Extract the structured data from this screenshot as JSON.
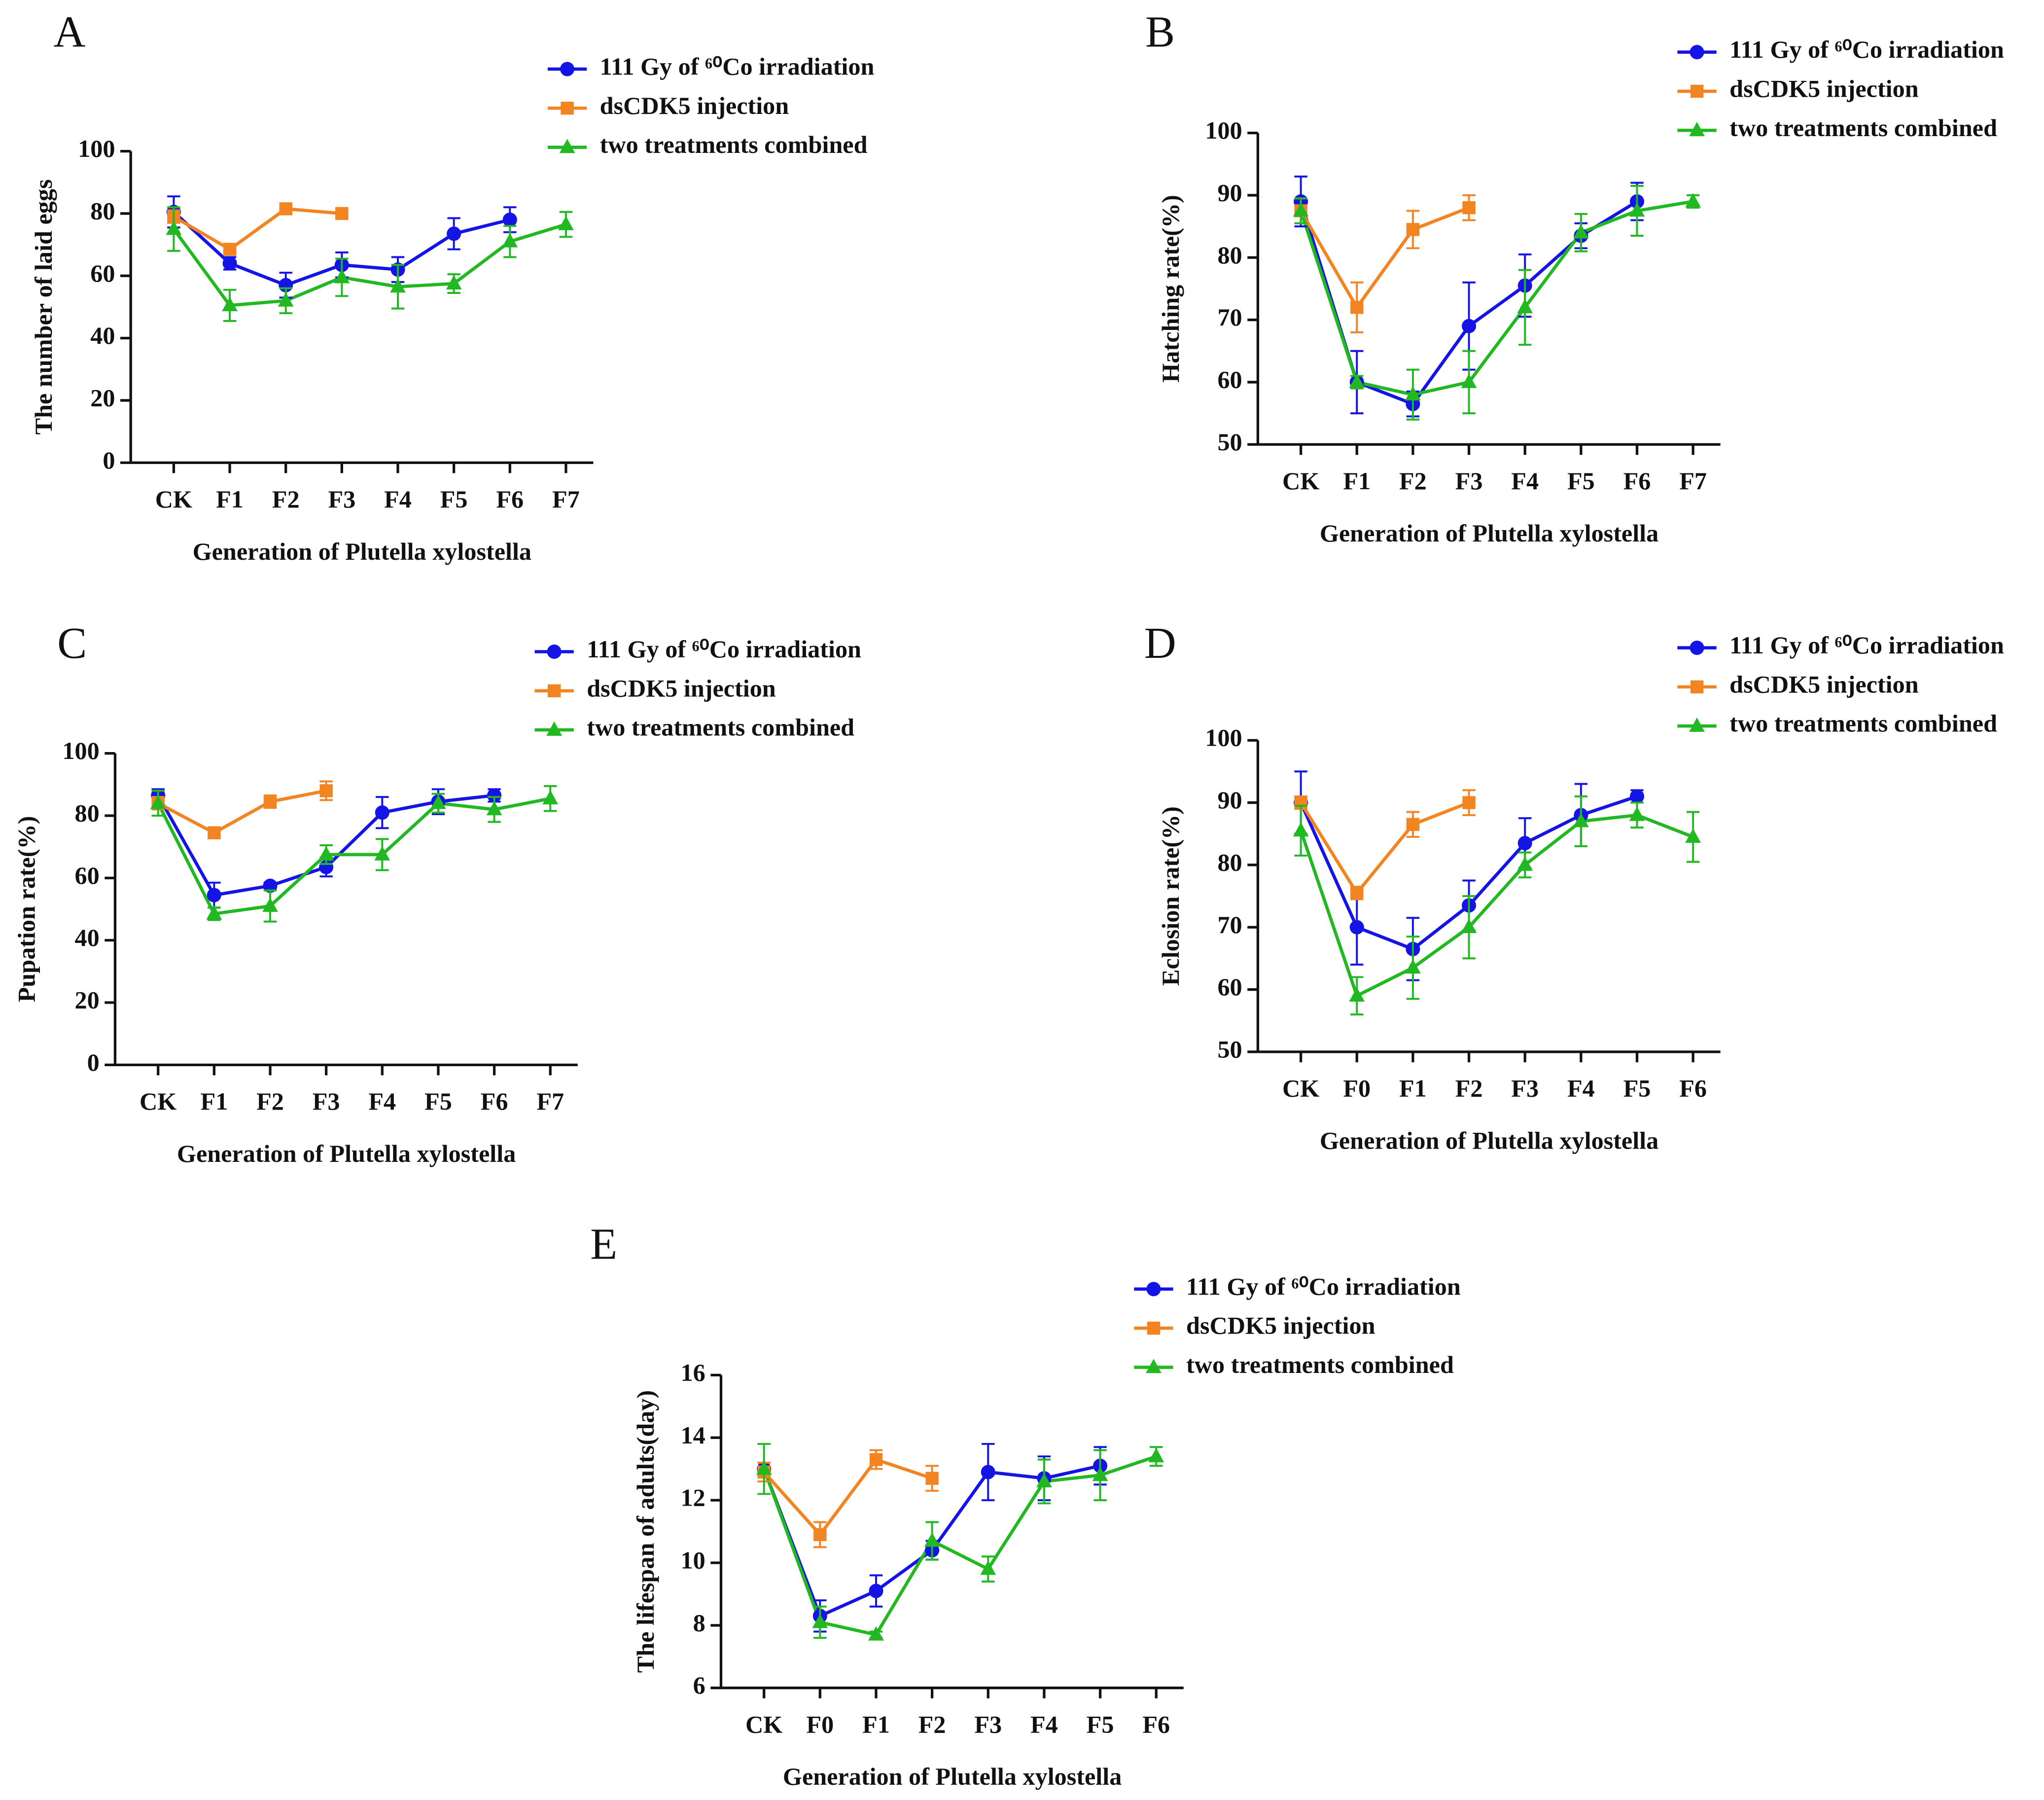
{
  "chart_data": [
    {
      "type": "line",
      "label": "A",
      "y_label": "The number of laid eggs",
      "x_label": "Generation of Plutella xylostella",
      "categories": [
        "CK",
        "F1",
        "F2",
        "F3",
        "F4",
        "F5",
        "F6",
        "F7"
      ],
      "ylim": [
        0,
        100
      ],
      "yticks": [
        0,
        20,
        40,
        60,
        80,
        100
      ],
      "series": [
        {
          "name": "111 Gy of ⁶⁰Co irradiation",
          "color": "#1414e6",
          "marker": "circle",
          "values": [
            80.5,
            64,
            57,
            63.5,
            62,
            73.5,
            78,
            null
          ],
          "errors": [
            5,
            2,
            4,
            4,
            4,
            5,
            4,
            null
          ]
        },
        {
          "name": "dsCDK5 injection",
          "color": "#f28522",
          "marker": "square",
          "values": [
            79,
            68.5,
            81.5,
            80,
            null,
            null,
            null,
            null
          ],
          "errors": [
            2,
            1,
            1,
            1,
            null,
            null,
            null,
            null
          ]
        },
        {
          "name": "two treatments combined",
          "color": "#22b822",
          "marker": "triangle",
          "values": [
            75,
            50.5,
            52,
            59.5,
            56.5,
            57.5,
            71,
            76.5
          ],
          "errors": [
            7,
            5,
            4,
            6,
            7,
            3,
            5,
            4
          ]
        }
      ]
    },
    {
      "type": "line",
      "label": "B",
      "y_label": "Hatching rate(%)",
      "x_label": "Generation of Plutella xylostella",
      "categories": [
        "CK",
        "F1",
        "F2",
        "F3",
        "F4",
        "F5",
        "F6",
        "F7"
      ],
      "ylim": [
        50,
        100
      ],
      "yticks": [
        50,
        60,
        70,
        80,
        90,
        100
      ],
      "series": [
        {
          "name": "111 Gy of ⁶⁰Co irradiation",
          "color": "#1414e6",
          "marker": "circle",
          "values": [
            89,
            60,
            56.5,
            69,
            75.5,
            83.5,
            89,
            null
          ],
          "errors": [
            4,
            5,
            2,
            7,
            5,
            2,
            3,
            null
          ]
        },
        {
          "name": "dsCDK5 injection",
          "color": "#f28522",
          "marker": "square",
          "values": [
            87.5,
            72,
            84.5,
            88,
            null,
            null,
            null,
            null
          ],
          "errors": [
            2,
            4,
            3,
            2,
            null,
            null,
            null,
            null
          ]
        },
        {
          "name": "two treatments combined",
          "color": "#22b822",
          "marker": "triangle",
          "values": [
            87.5,
            60,
            58,
            60,
            72,
            84,
            87.5,
            89
          ],
          "errors": [
            2,
            1,
            4,
            5,
            6,
            3,
            4,
            1
          ]
        }
      ]
    },
    {
      "type": "line",
      "label": "C",
      "y_label": "Pupation rate(%)",
      "x_label": "Generation of Plutella xylostella",
      "categories": [
        "CK",
        "F1",
        "F2",
        "F3",
        "F4",
        "F5",
        "F6",
        "F7"
      ],
      "ylim": [
        0,
        100
      ],
      "yticks": [
        0,
        20,
        40,
        60,
        80,
        100
      ],
      "series": [
        {
          "name": "111 Gy of ⁶⁰Co irradiation",
          "color": "#1414e6",
          "marker": "circle",
          "values": [
            86.5,
            54.5,
            57.5,
            63.5,
            81,
            84.5,
            86.5,
            null
          ],
          "errors": [
            2,
            4,
            1,
            3,
            5,
            4,
            2,
            null
          ]
        },
        {
          "name": "dsCDK5 injection",
          "color": "#f28522",
          "marker": "square",
          "values": [
            84,
            74.5,
            84.5,
            88,
            null,
            null,
            null,
            null
          ],
          "errors": [
            2,
            1,
            2,
            3,
            null,
            null,
            null,
            null
          ]
        },
        {
          "name": "two treatments combined",
          "color": "#22b822",
          "marker": "triangle",
          "values": [
            84,
            48.5,
            51,
            67.5,
            67.5,
            84,
            82,
            85.5
          ],
          "errors": [
            4,
            2,
            5,
            3,
            5,
            3,
            4,
            4
          ]
        }
      ]
    },
    {
      "type": "line",
      "label": "D",
      "y_label": "Eclosion rate(%)",
      "x_label": "Generation of Plutella xylostella",
      "categories": [
        "CK",
        "F0",
        "F1",
        "F2",
        "F3",
        "F4",
        "F5",
        "F6"
      ],
      "ylim": [
        50,
        100
      ],
      "yticks": [
        50,
        60,
        70,
        80,
        90,
        100
      ],
      "series": [
        {
          "name": "111 Gy of ⁶⁰Co irradiation",
          "color": "#1414e6",
          "marker": "circle",
          "values": [
            90,
            70,
            66.5,
            73.5,
            83.5,
            88,
            91,
            null
          ],
          "errors": [
            5,
            6,
            5,
            4,
            4,
            5,
            1,
            null
          ]
        },
        {
          "name": "dsCDK5 injection",
          "color": "#f28522",
          "marker": "square",
          "values": [
            90,
            75.5,
            86.5,
            90,
            null,
            null,
            null,
            null
          ],
          "errors": [
            1,
            1,
            2,
            2,
            null,
            null,
            null,
            null
          ]
        },
        {
          "name": "two treatments combined",
          "color": "#22b822",
          "marker": "triangle",
          "values": [
            85.5,
            59,
            63.5,
            70,
            80,
            87,
            88,
            84.5
          ],
          "errors": [
            4,
            3,
            5,
            5,
            2,
            4,
            2,
            4
          ]
        }
      ]
    },
    {
      "type": "line",
      "label": "E",
      "y_label": "The lifespan of adults(day)",
      "x_label": "Generation of Plutella xylostella",
      "categories": [
        "CK",
        "F0",
        "F1",
        "F2",
        "F3",
        "F4",
        "F5",
        "F6"
      ],
      "ylim": [
        6,
        16
      ],
      "yticks": [
        6,
        8,
        10,
        12,
        14,
        16
      ],
      "series": [
        {
          "name": "111 Gy of ⁶⁰Co irradiation",
          "color": "#1414e6",
          "marker": "circle",
          "values": [
            13,
            8.3,
            9.1,
            10.4,
            12.9,
            12.7,
            13.1,
            null
          ],
          "errors": [
            0.2,
            0.5,
            0.5,
            0.3,
            0.9,
            0.7,
            0.6,
            null
          ]
        },
        {
          "name": "dsCDK5 injection",
          "color": "#f28522",
          "marker": "square",
          "values": [
            12.9,
            10.9,
            13.3,
            12.7,
            null,
            null,
            null,
            null
          ],
          "errors": [
            0.3,
            0.4,
            0.3,
            0.4,
            null,
            null,
            null,
            null
          ]
        },
        {
          "name": "two treatments combined",
          "color": "#22b822",
          "marker": "triangle",
          "values": [
            13.0,
            8.1,
            7.7,
            10.7,
            9.8,
            12.6,
            12.8,
            13.4
          ],
          "errors": [
            0.8,
            0.5,
            0.1,
            0.6,
            0.4,
            0.7,
            0.8,
            0.3
          ]
        }
      ]
    }
  ]
}
